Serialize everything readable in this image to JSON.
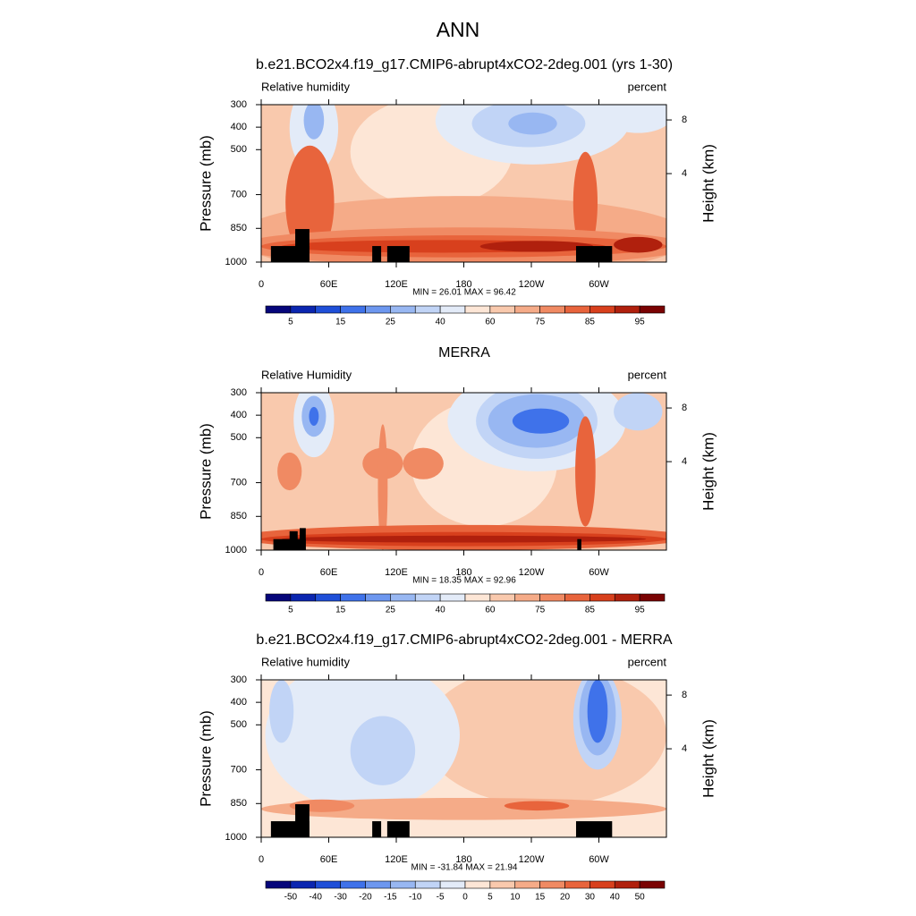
{
  "title": "ANN",
  "chart_data": [
    {
      "type": "contour",
      "title": "b.e21.BCO2x4.f19_g17.CMIP6-abrupt4xCO2-2deg.001 (yrs 1-30)",
      "left_string": "Relative humidity",
      "right_string": "percent",
      "xlim": [
        0,
        360
      ],
      "xticks": [
        0,
        {
          "value": 60,
          "label": "60E"
        },
        {
          "value": 120,
          "label": "120E"
        },
        180,
        {
          "value": 240,
          "label": "120W"
        },
        {
          "value": 300,
          "label": "60W"
        }
      ],
      "ylim": [
        1000,
        300
      ],
      "yticks": [
        300,
        400,
        500,
        700,
        850,
        1000
      ],
      "ylabel": "Pressure (mb)",
      "y2ticks": [
        4,
        8
      ],
      "y2label": "Height (km)",
      "stats": "MIN = 26.01  MAX = 96.42",
      "colorbar": {
        "colors": [
          "#06067a",
          "#0b26b0",
          "#1f4fd8",
          "#3f72ea",
          "#6d97ef",
          "#98b7f2",
          "#c1d4f6",
          "#e3ebf8",
          "#fde6d6",
          "#f9c9ad",
          "#f5ab88",
          "#f08a63",
          "#e8643c",
          "#d8401d",
          "#b0200d",
          "#7a0303"
        ],
        "labels": [
          5,
          15,
          25,
          40,
          60,
          75,
          85,
          95
        ]
      }
    },
    {
      "type": "contour",
      "title": "MERRA",
      "left_string": "Relative Humidity",
      "right_string": "percent",
      "xlim": [
        0,
        360
      ],
      "xticks": [
        0,
        {
          "value": 60,
          "label": "60E"
        },
        {
          "value": 120,
          "label": "120E"
        },
        180,
        {
          "value": 240,
          "label": "120W"
        },
        {
          "value": 300,
          "label": "60W"
        }
      ],
      "ylim": [
        1000,
        300
      ],
      "yticks": [
        300,
        400,
        500,
        700,
        850,
        1000
      ],
      "ylabel": "Pressure (mb)",
      "y2ticks": [
        4,
        8
      ],
      "y2label": "Height (km)",
      "stats": "MIN = 18.35  MAX = 92.96",
      "colorbar": {
        "colors": [
          "#06067a",
          "#0b26b0",
          "#1f4fd8",
          "#3f72ea",
          "#6d97ef",
          "#98b7f2",
          "#c1d4f6",
          "#e3ebf8",
          "#fde6d6",
          "#f9c9ad",
          "#f5ab88",
          "#f08a63",
          "#e8643c",
          "#d8401d",
          "#b0200d",
          "#7a0303"
        ],
        "labels": [
          5,
          15,
          25,
          40,
          60,
          75,
          85,
          95
        ]
      }
    },
    {
      "type": "contour",
      "title": "b.e21.BCO2x4.f19_g17.CMIP6-abrupt4xCO2-2deg.001 - MERRA",
      "left_string": "Relative humidity",
      "right_string": "percent",
      "xlim": [
        0,
        360
      ],
      "xticks": [
        0,
        {
          "value": 60,
          "label": "60E"
        },
        {
          "value": 120,
          "label": "120E"
        },
        180,
        {
          "value": 240,
          "label": "120W"
        },
        {
          "value": 300,
          "label": "60W"
        }
      ],
      "ylim": [
        1000,
        300
      ],
      "yticks": [
        300,
        400,
        500,
        700,
        850,
        1000
      ],
      "ylabel": "Pressure (mb)",
      "y2ticks": [
        4,
        8
      ],
      "y2label": "Height (km)",
      "stats": "MIN = -31.84  MAX = 21.94",
      "colorbar": {
        "colors": [
          "#06067a",
          "#0b26b0",
          "#1f4fd8",
          "#3f72ea",
          "#6d97ef",
          "#98b7f2",
          "#c1d4f6",
          "#e3ebf8",
          "#fde6d6",
          "#f9c9ad",
          "#f5ab88",
          "#f08a63",
          "#e8643c",
          "#d8401d",
          "#b0200d",
          "#7a0303"
        ],
        "labels": [
          -50,
          -40,
          -30,
          -20,
          -15,
          -10,
          -5,
          0,
          5,
          10,
          15,
          20,
          30,
          40,
          50
        ]
      }
    }
  ]
}
